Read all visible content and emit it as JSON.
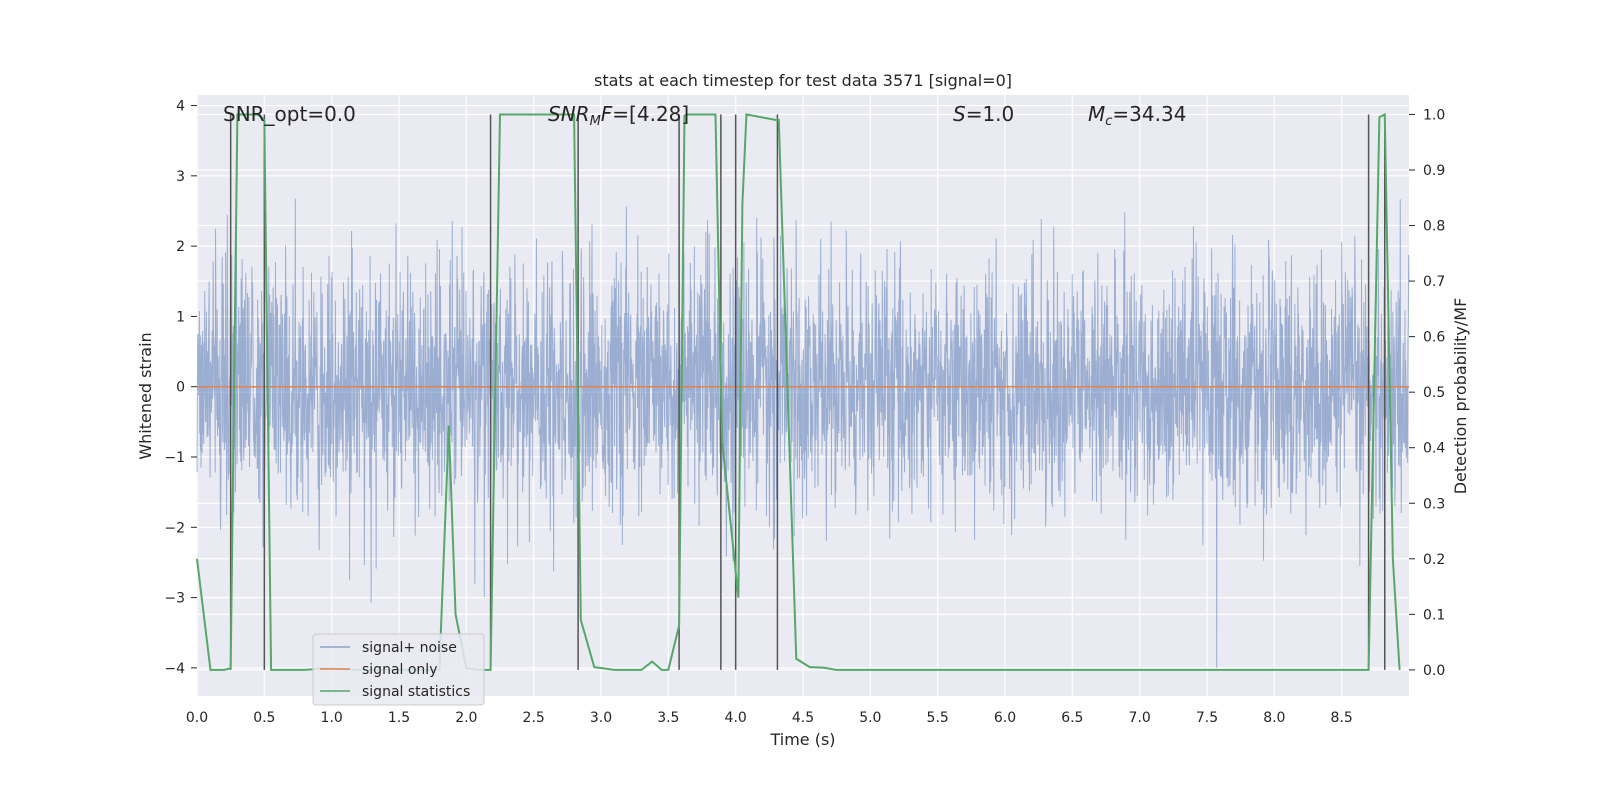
{
  "chart_data": {
    "type": "line",
    "title": "stats at each timestep for test data 3571 [signal=0]",
    "xlabel": "Time (s)",
    "ylabel": "Whitened strain",
    "y2label": "Detection probability/MF",
    "xlim": [
      0.0,
      9.0
    ],
    "ylim": [
      -4.4,
      4.15
    ],
    "y2lim": [
      -0.047,
      1.035
    ],
    "xticks": [
      "0.0",
      "0.5",
      "1.0",
      "1.5",
      "2.0",
      "2.5",
      "3.0",
      "3.5",
      "4.0",
      "4.5",
      "5.0",
      "5.5",
      "6.0",
      "6.5",
      "7.0",
      "7.5",
      "8.0",
      "8.5"
    ],
    "xtick_values": [
      0.0,
      0.5,
      1.0,
      1.5,
      2.0,
      2.5,
      3.0,
      3.5,
      4.0,
      4.5,
      5.0,
      5.5,
      6.0,
      6.5,
      7.0,
      7.5,
      8.0,
      8.5
    ],
    "yticks": [
      "−4",
      "−3",
      "−2",
      "−1",
      "0",
      "1",
      "2",
      "3",
      "4"
    ],
    "ytick_values": [
      -4,
      -3,
      -2,
      -1,
      0,
      1,
      2,
      3,
      4
    ],
    "y2ticks": [
      "0.0",
      "0.1",
      "0.2",
      "0.3",
      "0.4",
      "0.5",
      "0.6",
      "0.7",
      "0.8",
      "0.9",
      "1.0"
    ],
    "y2tick_values": [
      0.0,
      0.1,
      0.2,
      0.3,
      0.4,
      0.5,
      0.6,
      0.7,
      0.8,
      0.9,
      1.0
    ],
    "annotations": {
      "snr_opt": "SNR_opt=0.0",
      "snr_mf_main": "SNR",
      "snr_mf_sub": "M",
      "snr_mf_rest": "F",
      "snr_mf_value": "=[4.28]",
      "s_main": "S",
      "s_value": "=1.0",
      "mc_main": "M",
      "mc_sub": "c",
      "mc_value": "=34.34"
    },
    "legend": {
      "placement": "lower-left",
      "entries": [
        "signal+ noise",
        "signal only",
        "signal statistics"
      ]
    },
    "colors": {
      "noise": "#4c72b0",
      "signal": "#dd8452",
      "stats": "#55a868",
      "vline": "#555555",
      "background": "#eaeaf2",
      "grid": "#ffffff"
    },
    "noise_series": {
      "name": "signal+ noise",
      "description_of_envelope": "whitened strain samples, typical range -2.3 to 2.5, peaks to about 3.4 / -4.0",
      "typical_max": 2.4,
      "typical_min": -2.2,
      "extreme_max": 3.4,
      "extreme_min": -4.0
    },
    "signal_series": {
      "name": "signal only",
      "x": [
        0.0,
        9.0
      ],
      "y": [
        0.0,
        0.0
      ]
    },
    "stats_series": {
      "name": "signal statistics",
      "x": [
        0.0,
        0.05,
        0.1,
        0.2,
        0.25,
        0.3,
        0.45,
        0.5,
        0.55,
        0.6,
        0.8,
        0.95,
        1.05,
        1.2,
        1.8,
        1.87,
        1.92,
        2.0,
        2.1,
        2.18,
        2.25,
        2.45,
        2.8,
        2.85,
        2.95,
        3.1,
        3.3,
        3.38,
        3.45,
        3.5,
        3.58,
        3.62,
        3.65,
        3.85,
        3.9,
        4.02,
        4.05,
        4.08,
        4.3,
        4.32,
        4.45,
        4.55,
        4.65,
        4.75,
        5.0,
        8.7,
        8.78,
        8.82,
        8.88,
        8.93
      ],
      "y": [
        0.2,
        0.1,
        0.0,
        0.0,
        0.003,
        1.0,
        1.0,
        0.99,
        0.0,
        0.0,
        0.0,
        0.003,
        0.002,
        0.0,
        0.0,
        0.44,
        0.1,
        0.003,
        0.0,
        0.0,
        1.0,
        1.0,
        1.0,
        0.09,
        0.005,
        0.0,
        0.0,
        0.015,
        0.0,
        0.0,
        0.08,
        0.998,
        1.0,
        1.0,
        0.41,
        0.13,
        0.84,
        1.0,
        0.99,
        0.99,
        0.02,
        0.005,
        0.004,
        0.0,
        0.0,
        0.0,
        0.995,
        1.0,
        0.2,
        0.0
      ]
    },
    "vlines_x": [
      0.25,
      0.5,
      2.18,
      2.83,
      3.58,
      3.89,
      4.0,
      4.31,
      8.7,
      8.82
    ]
  }
}
